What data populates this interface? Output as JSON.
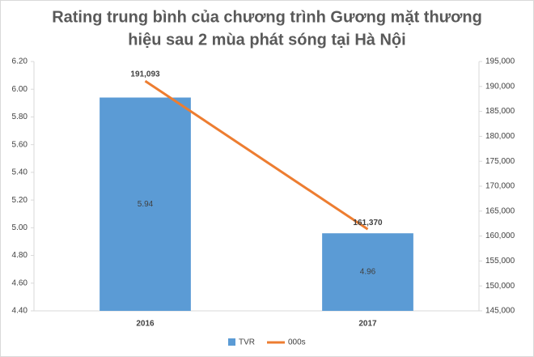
{
  "chart_data": {
    "type": "bar-line",
    "title": [
      "Rating trung bình của chương trình Gương mặt thương",
      "hiệu sau 2 mùa phát sóng tại Hà Nội"
    ],
    "categories": [
      "2016",
      "2017"
    ],
    "series": [
      {
        "name": "TVR",
        "type": "bar",
        "color": "#5b9bd5",
        "values": [
          5.94,
          4.96
        ]
      },
      {
        "name": "000s",
        "type": "line",
        "axis": "y2",
        "color": "#ed7d31",
        "values": [
          191093,
          161370
        ],
        "value_labels": [
          "191,093",
          "161,370"
        ]
      }
    ],
    "ylim": [
      4.4,
      6.2
    ],
    "yticks": [
      {
        "value": 4.4,
        "label": "4.40"
      },
      {
        "value": 4.6,
        "label": "4.60"
      },
      {
        "value": 4.8,
        "label": "4.80"
      },
      {
        "value": 5.0,
        "label": "5.00"
      },
      {
        "value": 5.2,
        "label": "5.20"
      },
      {
        "value": 5.4,
        "label": "5.40"
      },
      {
        "value": 5.6,
        "label": "5.60"
      },
      {
        "value": 5.8,
        "label": "5.80"
      },
      {
        "value": 6.0,
        "label": "6.00"
      },
      {
        "value": 6.2,
        "label": "6.20"
      }
    ],
    "y2lim": [
      145000,
      195000
    ],
    "y2ticks": [
      {
        "value": 145000,
        "label": "145,000"
      },
      {
        "value": 150000,
        "label": "150,000"
      },
      {
        "value": 155000,
        "label": "155,000"
      },
      {
        "value": 160000,
        "label": "160,000"
      },
      {
        "value": 165000,
        "label": "165,000"
      },
      {
        "value": 170000,
        "label": "170,000"
      },
      {
        "value": 175000,
        "label": "175,000"
      },
      {
        "value": 180000,
        "label": "180,000"
      },
      {
        "value": 185000,
        "label": "185,000"
      },
      {
        "value": 190000,
        "label": "190,000"
      },
      {
        "value": 195000,
        "label": "195,000"
      }
    ],
    "legend": "bottom"
  }
}
